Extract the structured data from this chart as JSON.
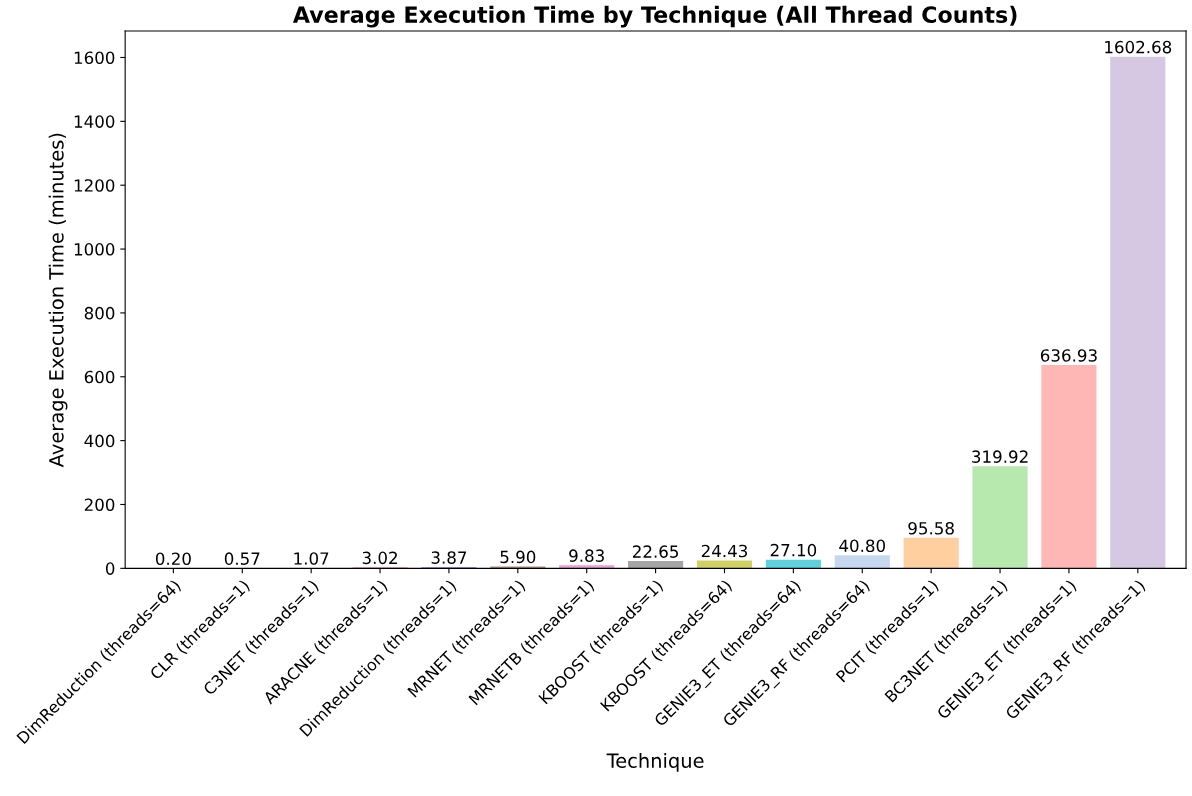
{
  "chart_data": {
    "type": "bar",
    "title": "Average Execution Time by Technique (All Thread Counts)",
    "xlabel": "Technique",
    "ylabel": "Average Execution Time (minutes)",
    "categories": [
      "DimReduction (threads=64)",
      "CLR (threads=1)",
      "C3NET (threads=1)",
      "ARACNE (threads=1)",
      "DimReduction (threads=1)",
      "MRNET (threads=1)",
      "MRNETB (threads=1)",
      "KBOOST (threads=1)",
      "KBOOST (threads=64)",
      "GENIE3_ET (threads=64)",
      "GENIE3_RF (threads=64)",
      "PCIT (threads=1)",
      "BC3NET (threads=1)",
      "GENIE3_ET (threads=1)",
      "GENIE3_RF (threads=1)"
    ],
    "values": [
      0.2,
      0.57,
      1.07,
      3.02,
      3.87,
      5.9,
      9.83,
      22.65,
      24.43,
      27.1,
      40.8,
      95.58,
      319.92,
      636.93,
      1602.68
    ],
    "colors": [
      "#62a0ca",
      "#ffa556",
      "#6bbc6b",
      "#e26869",
      "#b495d1",
      "#af8981",
      "#eba0d4",
      "#a5a5a5",
      "#d0d164",
      "#5dd2dd",
      "#c6d8ef",
      "#ffcfa0",
      "#b7e8ad",
      "#ffb7b6",
      "#d6c8e2"
    ],
    "value_labels": [
      "0.20",
      "0.57",
      "1.07",
      "3.02",
      "3.87",
      "5.90",
      "9.83",
      "22.65",
      "24.43",
      "27.10",
      "40.80",
      "95.58",
      "319.92",
      "636.93",
      "1602.68"
    ],
    "ylim": [
      0,
      1682.8
    ],
    "yticks": [
      0,
      200,
      400,
      600,
      800,
      1000,
      1200,
      1400,
      1600
    ],
    "grid": false
  }
}
